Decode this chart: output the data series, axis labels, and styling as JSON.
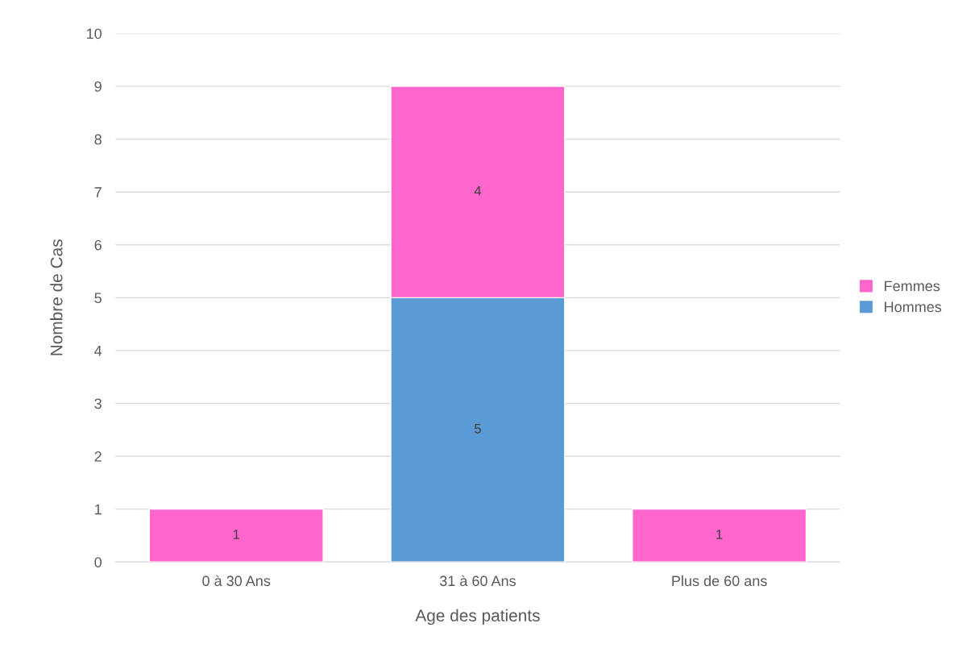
{
  "chart_data": {
    "type": "bar",
    "xlabel": "Age des patients",
    "ylabel": "Nombre de Cas",
    "categories": [
      "0 à 30 Ans",
      "31 à 60 Ans",
      "Plus de 60 ans"
    ],
    "series": [
      {
        "name": "Hommes",
        "color": "#5b9bd5",
        "values": [
          null,
          5,
          null
        ],
        "value_labels": [
          null,
          "5",
          null
        ]
      },
      {
        "name": "Femmes",
        "color": "#ff66cc",
        "values": [
          1,
          4,
          1
        ],
        "value_labels": [
          "1",
          "4",
          "1"
        ]
      }
    ],
    "stacked": true,
    "ylim": [
      0,
      10
    ],
    "yticks": [
      0,
      1,
      2,
      3,
      4,
      5,
      6,
      7,
      8,
      9,
      10
    ],
    "grid": "y",
    "legend": "right"
  }
}
